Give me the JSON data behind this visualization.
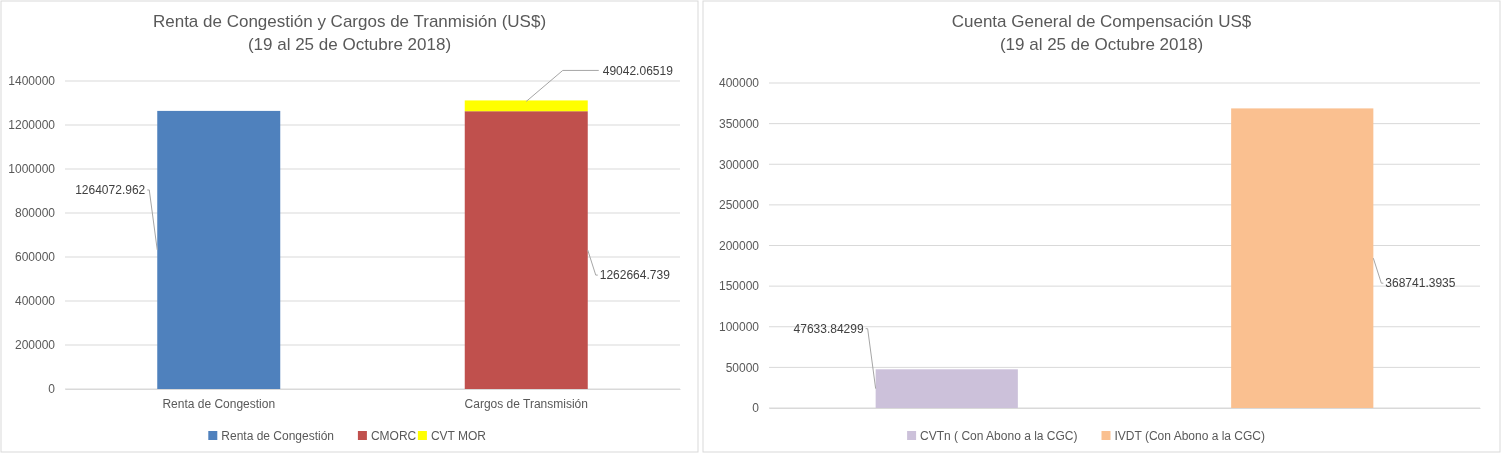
{
  "chart_data": [
    {
      "type": "bar",
      "title": "Renta de Congestión y Cargos de Tranmisión (US$)",
      "subtitle": "(19 al 25 de Octubre 2018)",
      "categories": [
        "Renta de Congestion",
        "Cargos de Transmisión"
      ],
      "stacked": true,
      "series": [
        {
          "name": "Renta de Congestión",
          "color": "#4f81bd",
          "values": [
            1264072.962,
            null
          ]
        },
        {
          "name": "CMORC",
          "color": "#c0504d",
          "values": [
            null,
            1262664.739
          ]
        },
        {
          "name": "CVT MOR",
          "color": "#ffff00",
          "values": [
            null,
            49042.06519
          ]
        }
      ],
      "ylim": [
        0,
        1400000
      ],
      "yticks": [
        0,
        200000,
        400000,
        600000,
        800000,
        1000000,
        1200000,
        1400000
      ],
      "grid": "y",
      "legend": "bottom",
      "data_labels": true
    },
    {
      "type": "bar",
      "title": "Cuenta General de Compensación US$",
      "subtitle": "(19 al 25 de Octubre 2018)",
      "categories": [
        null,
        null
      ],
      "series": [
        {
          "name": "CVTn ( Con Abono a la CGC)",
          "color": "#ccc1da",
          "values": [
            47633.84299,
            null
          ]
        },
        {
          "name": "IVDT  (Con Abono a la CGC)",
          "color": "#fac090",
          "values": [
            null,
            368741.3935
          ]
        }
      ],
      "ylim": [
        0,
        400000
      ],
      "yticks": [
        0,
        50000,
        100000,
        150000,
        200000,
        250000,
        300000,
        350000,
        400000
      ],
      "grid": "y",
      "legend": "bottom",
      "data_labels": true
    }
  ]
}
